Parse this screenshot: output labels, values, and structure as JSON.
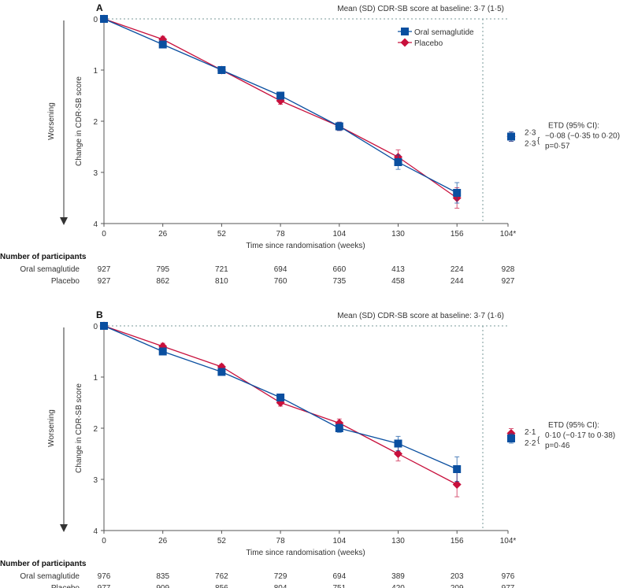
{
  "colors": {
    "semaglutide": "#0a4fa0",
    "placebo": "#c8103c",
    "axis": "#555555",
    "reference": "#7a9a9a"
  },
  "chart_data": [
    {
      "type": "line",
      "panel": "A",
      "subtitle": "Mean (SD) CDR-SB score at baseline: 3·7 (1·5)",
      "xlabel": "Time since randomisation (weeks)",
      "ylabel": "Change in CDR-SB score",
      "direction_label": "Worsening",
      "x_ticks": [
        "0",
        "26",
        "52",
        "78",
        "104",
        "130",
        "156",
        "104*"
      ],
      "y_ticks": [
        "0",
        "1",
        "2",
        "3",
        "4"
      ],
      "ylim": [
        0,
        4
      ],
      "y_inverted": true,
      "x": [
        0,
        26,
        52,
        78,
        104,
        130,
        156
      ],
      "series": [
        {
          "name": "Oral semaglutide",
          "marker": "square",
          "values": [
            0,
            0.5,
            1.0,
            1.5,
            2.1,
            2.8,
            3.4
          ],
          "err": [
            0.02,
            0.06,
            0.05,
            0.07,
            0.08,
            0.14,
            0.2
          ]
        },
        {
          "name": "Placebo",
          "marker": "diamond",
          "values": [
            0,
            0.4,
            1.0,
            1.6,
            2.1,
            2.7,
            3.5
          ],
          "err": [
            0.02,
            0.06,
            0.05,
            0.07,
            0.08,
            0.14,
            0.2
          ]
        }
      ],
      "summary": {
        "values": [
          "2·3",
          "2·3"
        ],
        "points": [
          2.3,
          2.3
        ],
        "etd_title": "ETD (95% CI):",
        "etd": "−0·08 (−0·35 to 0·20)",
        "p": "p=0·57"
      },
      "table": {
        "title": "Number of participants",
        "rows": [
          {
            "label": "Oral semaglutide",
            "values": [
              "927",
              "795",
              "721",
              "694",
              "660",
              "413",
              "224",
              "928"
            ]
          },
          {
            "label": "Placebo",
            "values": [
              "927",
              "862",
              "810",
              "760",
              "735",
              "458",
              "244",
              "927"
            ]
          }
        ]
      }
    },
    {
      "type": "line",
      "panel": "B",
      "subtitle": "Mean (SD) CDR-SB score at baseline: 3·7 (1·6)",
      "xlabel": "Time since randomisation (weeks)",
      "ylabel": "Change in CDR-SB score",
      "direction_label": "Worsening",
      "x_ticks": [
        "0",
        "26",
        "52",
        "78",
        "104",
        "130",
        "156",
        "104*"
      ],
      "y_ticks": [
        "0",
        "1",
        "2",
        "3",
        "4"
      ],
      "ylim": [
        0,
        4
      ],
      "y_inverted": true,
      "x": [
        0,
        26,
        52,
        78,
        104,
        130,
        156
      ],
      "series": [
        {
          "name": "Oral semaglutide",
          "marker": "square",
          "values": [
            0,
            0.5,
            0.9,
            1.4,
            2.0,
            2.3,
            2.8
          ],
          "err": [
            0.02,
            0.06,
            0.05,
            0.07,
            0.08,
            0.14,
            0.24
          ]
        },
        {
          "name": "Placebo",
          "marker": "diamond",
          "values": [
            0,
            0.4,
            0.8,
            1.5,
            1.9,
            2.5,
            3.1
          ],
          "err": [
            0.02,
            0.06,
            0.05,
            0.07,
            0.08,
            0.14,
            0.24
          ]
        }
      ],
      "summary": {
        "values": [
          "2·1",
          "2·2"
        ],
        "points": [
          2.1,
          2.2
        ],
        "etd_title": "ETD (95% CI):",
        "etd": "0·10 (−0·17 to 0·38)",
        "p": "p=0·46"
      },
      "table": {
        "title": "Number of participants",
        "rows": [
          {
            "label": "Oral semaglutide",
            "values": [
              "976",
              "835",
              "762",
              "729",
              "694",
              "389",
              "203",
              "976"
            ]
          },
          {
            "label": "Placebo",
            "values": [
              "977",
              "909",
              "856",
              "804",
              "751",
              "420",
              "209",
              "977"
            ]
          }
        ]
      }
    }
  ]
}
